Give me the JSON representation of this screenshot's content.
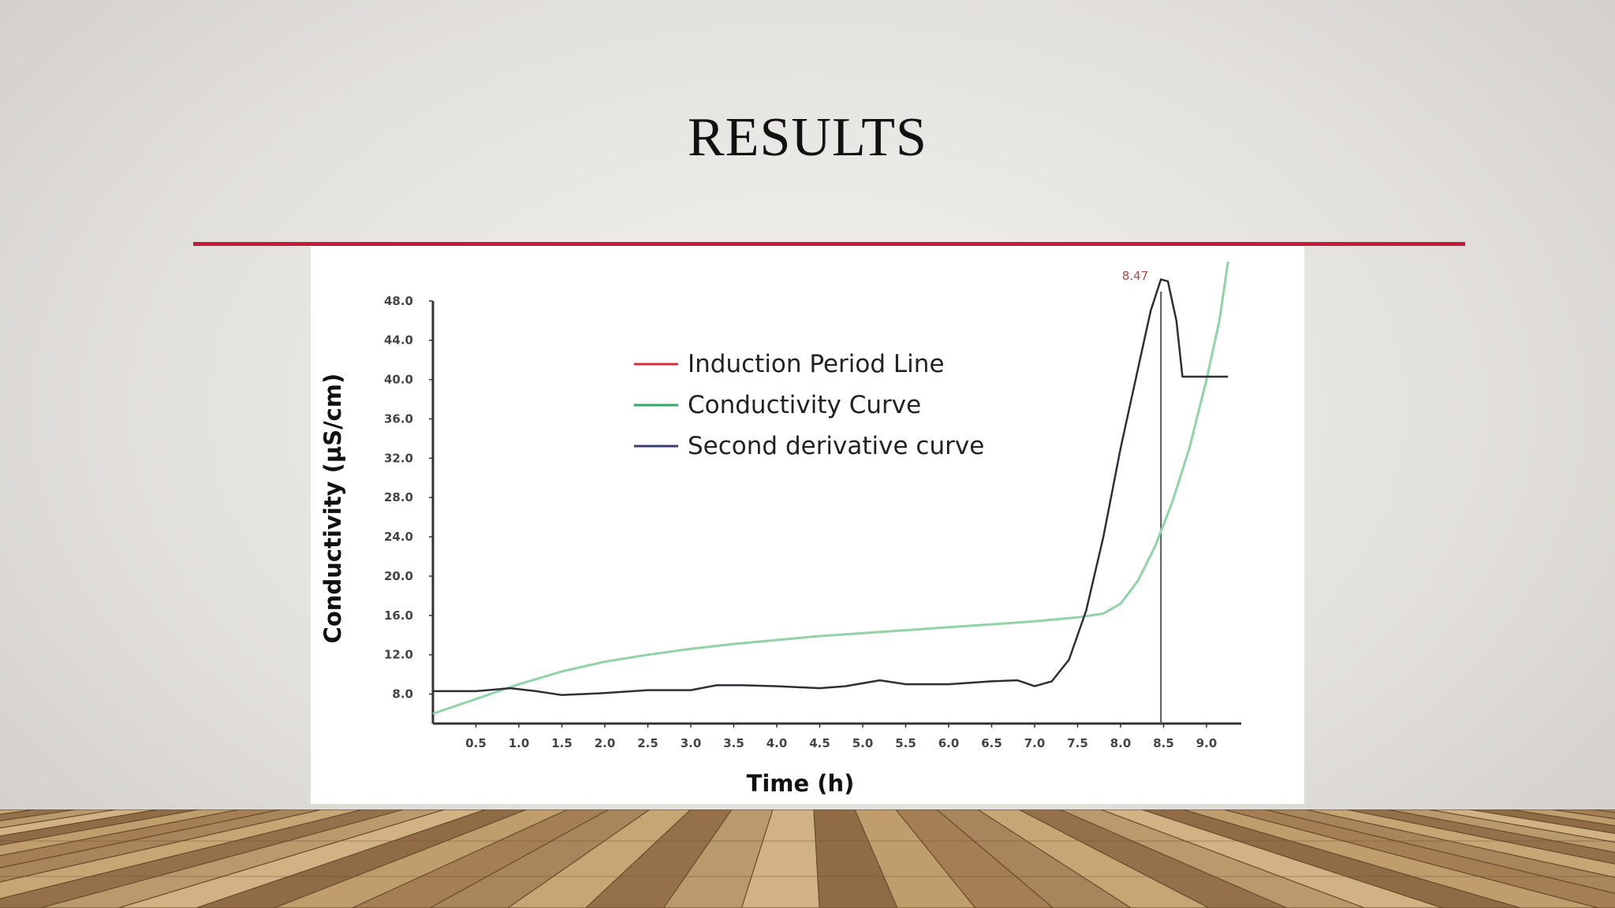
{
  "slide": {
    "title": "RESULTS",
    "accent_color": "#c8193c",
    "background": "light-gray-gradient",
    "floor": "wooden-planks"
  },
  "chart_data": {
    "type": "line",
    "title": "",
    "xlabel": "Time (h)",
    "ylabel": "Conductivity (µS/cm)",
    "xlim": [
      0,
      9.5
    ],
    "ylim": [
      5,
      52
    ],
    "x_ticks": [
      "0.5",
      "1.0",
      "1.5",
      "2.0",
      "2.5",
      "3.0",
      "3.5",
      "4.0",
      "4.5",
      "5.0",
      "5.5",
      "6.0",
      "6.5",
      "7.0",
      "7.5",
      "8.0",
      "8.5",
      "9.0"
    ],
    "y_ticks": [
      "8.0",
      "12.0",
      "16.0",
      "20.0",
      "24.0",
      "28.0",
      "32.0",
      "36.0",
      "40.0",
      "44.0",
      "48.0"
    ],
    "legend_position": "top-center",
    "grid": false,
    "series": [
      {
        "name": "Induction Period Line",
        "color": "#d9303a",
        "type": "vertical-line",
        "x": 8.47
      },
      {
        "name": "Conductivity Curve",
        "color": "#2eaa62",
        "points": [
          [
            0,
            6
          ],
          [
            0.5,
            7.5
          ],
          [
            1,
            9
          ],
          [
            1.5,
            10.3
          ],
          [
            2,
            11.3
          ],
          [
            2.5,
            12
          ],
          [
            3,
            12.6
          ],
          [
            3.5,
            13.1
          ],
          [
            4,
            13.5
          ],
          [
            4.5,
            13.9
          ],
          [
            5,
            14.2
          ],
          [
            5.5,
            14.5
          ],
          [
            6,
            14.8
          ],
          [
            6.5,
            15.1
          ],
          [
            7,
            15.4
          ],
          [
            7.5,
            15.8
          ],
          [
            7.8,
            16.2
          ],
          [
            8,
            17.2
          ],
          [
            8.2,
            19.5
          ],
          [
            8.4,
            23
          ],
          [
            8.6,
            27.5
          ],
          [
            8.8,
            33
          ],
          [
            9,
            40
          ],
          [
            9.15,
            46
          ],
          [
            9.25,
            52
          ]
        ]
      },
      {
        "name": "Second derivative curve",
        "color": "#3a3d6e",
        "points": [
          [
            0,
            8.3
          ],
          [
            0.5,
            8.3
          ],
          [
            0.9,
            8.6
          ],
          [
            1.2,
            8.3
          ],
          [
            1.5,
            7.9
          ],
          [
            2,
            8.1
          ],
          [
            2.5,
            8.4
          ],
          [
            3,
            8.4
          ],
          [
            3.3,
            8.9
          ],
          [
            3.6,
            8.9
          ],
          [
            4,
            8.8
          ],
          [
            4.5,
            8.6
          ],
          [
            4.8,
            8.8
          ],
          [
            5,
            9.1
          ],
          [
            5.2,
            9.4
          ],
          [
            5.5,
            9
          ],
          [
            6,
            9
          ],
          [
            6.5,
            9.3
          ],
          [
            6.8,
            9.4
          ],
          [
            7,
            8.8
          ],
          [
            7.2,
            9.3
          ],
          [
            7.4,
            11.5
          ],
          [
            7.6,
            16.5
          ],
          [
            7.8,
            24
          ],
          [
            8,
            33
          ],
          [
            8.2,
            41
          ],
          [
            8.35,
            47
          ],
          [
            8.47,
            50.2
          ],
          [
            8.55,
            50
          ],
          [
            8.65,
            46
          ],
          [
            8.72,
            40.3
          ],
          [
            9.25,
            40.3
          ]
        ]
      }
    ],
    "annotations": [
      {
        "text": "8.47",
        "x": 8.47,
        "y": 50
      }
    ]
  }
}
